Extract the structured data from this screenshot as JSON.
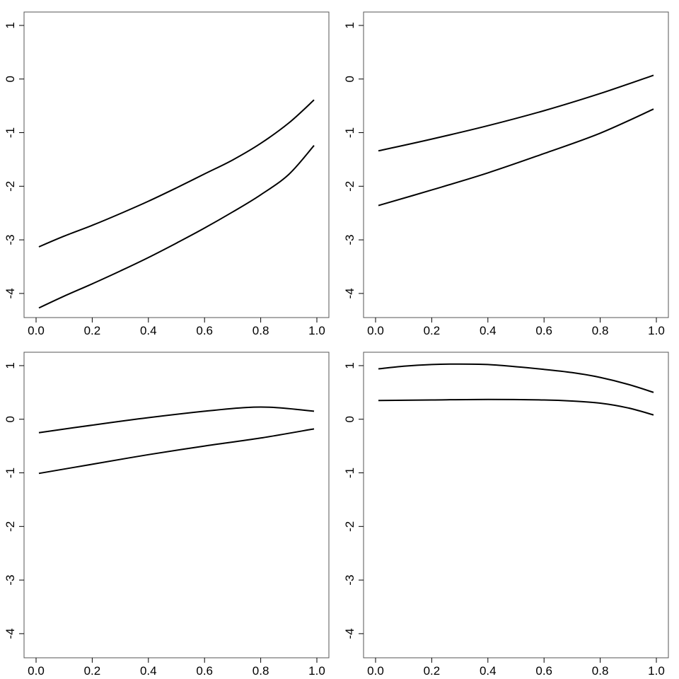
{
  "chart_data": [
    {
      "type": "line",
      "xlim": [
        0,
        1
      ],
      "ylim": [
        -4.45,
        1.25
      ],
      "x_ticks": [
        "0.0",
        "0.2",
        "0.4",
        "0.6",
        "0.8",
        "1.0"
      ],
      "y_ticks": [
        "-4",
        "-3",
        "-2",
        "-1",
        "0",
        "1"
      ],
      "grid": false,
      "series": [
        {
          "x": [
            0.01,
            0.1,
            0.2,
            0.3,
            0.4,
            0.5,
            0.6,
            0.7,
            0.8,
            0.9,
            0.99
          ],
          "values": [
            -3.13,
            -2.93,
            -2.73,
            -2.51,
            -2.28,
            -2.03,
            -1.77,
            -1.51,
            -1.2,
            -0.82,
            -0.39
          ]
        },
        {
          "x": [
            0.01,
            0.1,
            0.2,
            0.3,
            0.4,
            0.5,
            0.6,
            0.7,
            0.8,
            0.9,
            0.99
          ],
          "values": [
            -4.27,
            -4.05,
            -3.82,
            -3.58,
            -3.33,
            -3.06,
            -2.78,
            -2.48,
            -2.16,
            -1.78,
            -1.24
          ]
        }
      ]
    },
    {
      "type": "line",
      "xlim": [
        0,
        1
      ],
      "ylim": [
        -4.45,
        1.25
      ],
      "x_ticks": [
        "0.0",
        "0.2",
        "0.4",
        "0.6",
        "0.8",
        "1.0"
      ],
      "y_ticks": [
        "-4",
        "-3",
        "-2",
        "-1",
        "0",
        "1"
      ],
      "grid": false,
      "series": [
        {
          "x": [
            0.01,
            0.2,
            0.4,
            0.6,
            0.8,
            0.99
          ],
          "values": [
            -1.34,
            -1.12,
            -0.87,
            -0.59,
            -0.27,
            0.07
          ]
        },
        {
          "x": [
            0.01,
            0.2,
            0.4,
            0.6,
            0.8,
            0.99
          ],
          "values": [
            -2.36,
            -2.07,
            -1.75,
            -1.39,
            -1.01,
            -0.56
          ]
        }
      ]
    },
    {
      "type": "line",
      "xlim": [
        0,
        1
      ],
      "ylim": [
        -4.45,
        1.25
      ],
      "x_ticks": [
        "0.0",
        "0.2",
        "0.4",
        "0.6",
        "0.8",
        "1.0"
      ],
      "y_ticks": [
        "-4",
        "-3",
        "-2",
        "-1",
        "0",
        "1"
      ],
      "grid": false,
      "series": [
        {
          "x": [
            0.01,
            0.2,
            0.4,
            0.6,
            0.75,
            0.85,
            0.99
          ],
          "values": [
            -0.25,
            -0.11,
            0.03,
            0.15,
            0.22,
            0.22,
            0.15
          ]
        },
        {
          "x": [
            0.01,
            0.2,
            0.4,
            0.6,
            0.8,
            0.99
          ],
          "values": [
            -1.01,
            -0.84,
            -0.66,
            -0.5,
            -0.35,
            -0.18
          ]
        }
      ]
    },
    {
      "type": "line",
      "xlim": [
        0,
        1
      ],
      "ylim": [
        -4.45,
        1.25
      ],
      "x_ticks": [
        "0.0",
        "0.2",
        "0.4",
        "0.6",
        "0.8",
        "1.0"
      ],
      "y_ticks": [
        "-4",
        "-3",
        "-2",
        "-1",
        "0",
        "1"
      ],
      "grid": false,
      "series": [
        {
          "x": [
            0.01,
            0.1,
            0.2,
            0.3,
            0.4,
            0.5,
            0.6,
            0.7,
            0.8,
            0.9,
            0.99
          ],
          "values": [
            0.94,
            0.99,
            1.02,
            1.03,
            1.02,
            0.98,
            0.93,
            0.87,
            0.78,
            0.65,
            0.5
          ]
        },
        {
          "x": [
            0.01,
            0.2,
            0.4,
            0.6,
            0.7,
            0.8,
            0.9,
            0.99
          ],
          "values": [
            0.35,
            0.36,
            0.37,
            0.36,
            0.34,
            0.3,
            0.21,
            0.08
          ]
        }
      ]
    }
  ]
}
